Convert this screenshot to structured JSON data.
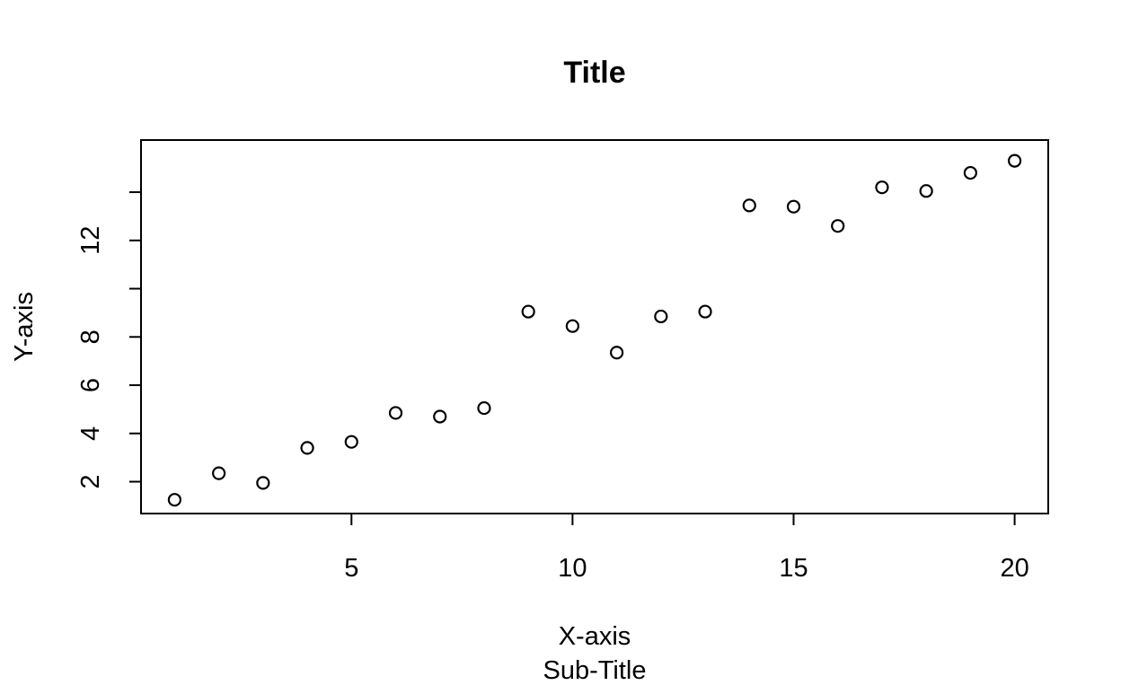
{
  "chart_data": {
    "type": "scatter",
    "title": "Title",
    "subtitle": "Sub-Title",
    "xlabel": "X-axis",
    "ylabel": "Y-axis",
    "xlim": [
      0.24,
      20.76
    ],
    "ylim": [
      0.68,
      16.16
    ],
    "x_ticks": [
      5,
      10,
      15,
      20
    ],
    "y_ticks": [
      2,
      4,
      6,
      8,
      10,
      12,
      14
    ],
    "y_tick_labels": [
      "2",
      "4",
      "6",
      "8",
      "",
      "12",
      ""
    ],
    "grid": false,
    "legend": "none",
    "marker": "open-circle",
    "marker_color": "#000000",
    "x": [
      1,
      2,
      3,
      4,
      5,
      6,
      7,
      8,
      9,
      10,
      11,
      12,
      13,
      14,
      15,
      16,
      17,
      18,
      19,
      20
    ],
    "y": [
      1.25,
      2.35,
      1.95,
      3.4,
      3.65,
      4.85,
      4.7,
      5.05,
      9.05,
      8.45,
      7.35,
      8.85,
      9.05,
      13.45,
      13.4,
      12.6,
      14.2,
      14.05,
      14.8,
      15.3
    ]
  }
}
